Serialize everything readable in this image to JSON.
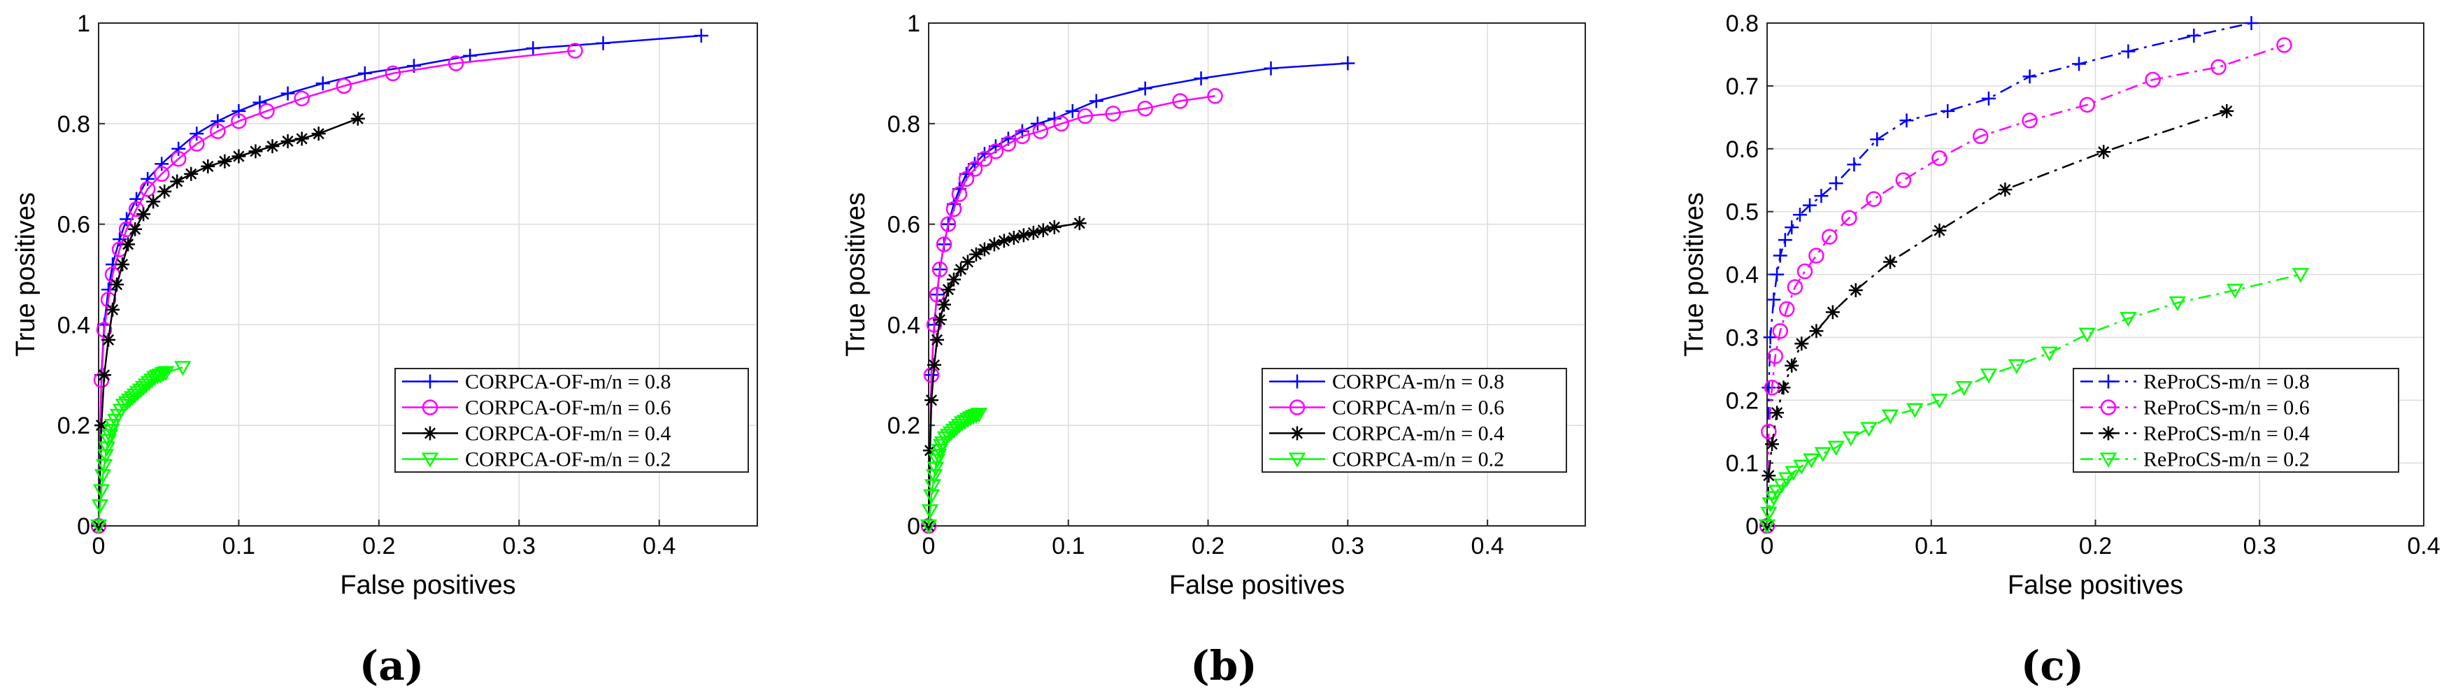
{
  "figure": {
    "captions": [
      "(a)",
      "(b)",
      "(c)"
    ]
  },
  "chart_data": [
    {
      "type": "line",
      "panel": "a",
      "caption": "(a)",
      "title": "",
      "xlabel": "False positives",
      "ylabel": "True positives",
      "xlim": [
        0,
        0.47
      ],
      "ylim": [
        0,
        1
      ],
      "xticks": [
        0,
        0.1,
        0.2,
        0.3,
        0.4
      ],
      "yticks": [
        0,
        0.2,
        0.4,
        0.6,
        0.8,
        1
      ],
      "xtick_labels": [
        "0",
        "0.1",
        "0.2",
        "0.3",
        "0.4"
      ],
      "ytick_labels": [
        "0",
        "0.2",
        "0.4",
        "0.6",
        "0.8",
        "1"
      ],
      "grid": true,
      "legend_position": "bottom-right",
      "series": [
        {
          "name": "CORPCA-OF-m/n = 0.8",
          "color": "#0000ff",
          "marker": "plus",
          "dash": "solid",
          "x": [
            0,
            0.002,
            0.004,
            0.007,
            0.01,
            0.015,
            0.02,
            0.027,
            0.035,
            0.045,
            0.057,
            0.07,
            0.085,
            0.1,
            0.115,
            0.135,
            0.16,
            0.19,
            0.225,
            0.265,
            0.31,
            0.36,
            0.43
          ],
          "y": [
            0,
            0.3,
            0.4,
            0.47,
            0.52,
            0.57,
            0.61,
            0.65,
            0.69,
            0.72,
            0.75,
            0.78,
            0.805,
            0.825,
            0.842,
            0.86,
            0.88,
            0.9,
            0.915,
            0.935,
            0.95,
            0.96,
            0.975
          ]
        },
        {
          "name": "CORPCA-OF-m/n = 0.6",
          "color": "#ff00ff",
          "marker": "circle",
          "dash": "solid",
          "x": [
            0,
            0.002,
            0.004,
            0.007,
            0.01,
            0.015,
            0.02,
            0.027,
            0.035,
            0.045,
            0.057,
            0.07,
            0.085,
            0.1,
            0.12,
            0.145,
            0.175,
            0.21,
            0.255,
            0.34
          ],
          "y": [
            0,
            0.29,
            0.39,
            0.45,
            0.5,
            0.55,
            0.59,
            0.63,
            0.67,
            0.7,
            0.73,
            0.76,
            0.785,
            0.805,
            0.825,
            0.85,
            0.875,
            0.9,
            0.92,
            0.945
          ]
        },
        {
          "name": "CORPCA-OF-m/n = 0.4",
          "color": "#000000",
          "marker": "star",
          "dash": "solid",
          "x": [
            0,
            0.002,
            0.004,
            0.007,
            0.01,
            0.013,
            0.017,
            0.021,
            0.026,
            0.032,
            0.039,
            0.047,
            0.056,
            0.066,
            0.078,
            0.09,
            0.1,
            0.112,
            0.124,
            0.135,
            0.145,
            0.157,
            0.185
          ],
          "y": [
            0,
            0.2,
            0.3,
            0.37,
            0.43,
            0.48,
            0.52,
            0.56,
            0.59,
            0.62,
            0.645,
            0.665,
            0.685,
            0.7,
            0.715,
            0.725,
            0.735,
            0.745,
            0.755,
            0.765,
            0.77,
            0.78,
            0.81
          ]
        },
        {
          "name": "CORPCA-OF-m/n = 0.2",
          "color": "#00ff00",
          "marker": "triangle-down",
          "dash": "solid",
          "x": [
            0,
            0.001,
            0.002,
            0.003,
            0.004,
            0.005,
            0.006,
            0.007,
            0.008,
            0.009,
            0.01,
            0.012,
            0.014,
            0.016,
            0.018,
            0.02,
            0.022,
            0.024,
            0.026,
            0.028,
            0.03,
            0.032,
            0.034,
            0.036,
            0.038,
            0.04,
            0.042,
            0.044,
            0.046,
            0.048,
            0.06
          ],
          "y": [
            0,
            0.04,
            0.07,
            0.1,
            0.12,
            0.14,
            0.155,
            0.17,
            0.18,
            0.19,
            0.2,
            0.21,
            0.22,
            0.23,
            0.24,
            0.245,
            0.25,
            0.255,
            0.26,
            0.265,
            0.27,
            0.275,
            0.28,
            0.285,
            0.29,
            0.295,
            0.298,
            0.3,
            0.303,
            0.305,
            0.315
          ]
        }
      ]
    },
    {
      "type": "line",
      "panel": "b",
      "caption": "(b)",
      "title": "",
      "xlabel": "False positives",
      "ylabel": "True positives",
      "xlim": [
        0,
        0.47
      ],
      "ylim": [
        0,
        1
      ],
      "xticks": [
        0,
        0.1,
        0.2,
        0.3,
        0.4
      ],
      "yticks": [
        0,
        0.2,
        0.4,
        0.6,
        0.8,
        1
      ],
      "xtick_labels": [
        "0",
        "0.1",
        "0.2",
        "0.3",
        "0.4"
      ],
      "ytick_labels": [
        "0",
        "0.2",
        "0.4",
        "0.6",
        "0.8",
        "1"
      ],
      "grid": true,
      "legend_position": "bottom-right",
      "series": [
        {
          "name": "CORPCA-m/n = 0.8",
          "color": "#0000ff",
          "marker": "plus",
          "dash": "solid",
          "x": [
            0,
            0.002,
            0.004,
            0.006,
            0.008,
            0.011,
            0.014,
            0.018,
            0.022,
            0.027,
            0.033,
            0.04,
            0.048,
            0.057,
            0.067,
            0.078,
            0.09,
            0.103,
            0.12,
            0.155,
            0.195,
            0.245,
            0.3
          ],
          "y": [
            0,
            0.3,
            0.4,
            0.46,
            0.51,
            0.56,
            0.6,
            0.64,
            0.67,
            0.7,
            0.72,
            0.74,
            0.755,
            0.77,
            0.785,
            0.8,
            0.81,
            0.825,
            0.845,
            0.87,
            0.89,
            0.91,
            0.92
          ]
        },
        {
          "name": "CORPCA-m/n = 0.6",
          "color": "#ff00ff",
          "marker": "circle",
          "dash": "solid",
          "x": [
            0,
            0.002,
            0.004,
            0.006,
            0.008,
            0.011,
            0.014,
            0.018,
            0.022,
            0.027,
            0.033,
            0.04,
            0.048,
            0.057,
            0.067,
            0.08,
            0.095,
            0.112,
            0.132,
            0.155,
            0.18,
            0.205
          ],
          "y": [
            0,
            0.3,
            0.4,
            0.46,
            0.51,
            0.56,
            0.6,
            0.63,
            0.66,
            0.69,
            0.71,
            0.73,
            0.745,
            0.76,
            0.775,
            0.785,
            0.8,
            0.815,
            0.82,
            0.83,
            0.845,
            0.855
          ]
        },
        {
          "name": "CORPCA-m/n = 0.4",
          "color": "#000000",
          "marker": "star",
          "dash": "solid",
          "x": [
            0,
            0.001,
            0.002,
            0.004,
            0.006,
            0.008,
            0.011,
            0.014,
            0.018,
            0.023,
            0.028,
            0.034,
            0.04,
            0.047,
            0.054,
            0.061,
            0.068,
            0.075,
            0.082,
            0.09,
            0.108
          ],
          "y": [
            0,
            0.15,
            0.25,
            0.32,
            0.37,
            0.41,
            0.44,
            0.47,
            0.49,
            0.51,
            0.525,
            0.54,
            0.55,
            0.56,
            0.567,
            0.573,
            0.578,
            0.583,
            0.588,
            0.594,
            0.602
          ]
        },
        {
          "name": "CORPCA-m/n = 0.2",
          "color": "#00ff00",
          "marker": "triangle-down",
          "dash": "solid",
          "x": [
            0,
            0.001,
            0.002,
            0.003,
            0.004,
            0.005,
            0.006,
            0.007,
            0.008,
            0.009,
            0.01,
            0.012,
            0.014,
            0.016,
            0.018,
            0.02,
            0.022,
            0.024,
            0.026,
            0.028,
            0.03,
            0.032,
            0.034,
            0.036
          ],
          "y": [
            0,
            0.03,
            0.06,
            0.08,
            0.1,
            0.115,
            0.13,
            0.14,
            0.15,
            0.16,
            0.165,
            0.175,
            0.18,
            0.185,
            0.19,
            0.195,
            0.2,
            0.205,
            0.208,
            0.212,
            0.215,
            0.218,
            0.22,
            0.222
          ]
        }
      ]
    },
    {
      "type": "line",
      "panel": "c",
      "caption": "(c)",
      "title": "",
      "xlabel": "False positives",
      "ylabel": "True positives",
      "xlim": [
        0,
        0.4
      ],
      "ylim": [
        0,
        0.8
      ],
      "xticks": [
        0,
        0.1,
        0.2,
        0.3,
        0.4
      ],
      "yticks": [
        0,
        0.1,
        0.2,
        0.3,
        0.4,
        0.5,
        0.6,
        0.7,
        0.8
      ],
      "xtick_labels": [
        "0",
        "0.1",
        "0.2",
        "0.3",
        "0.4"
      ],
      "ytick_labels": [
        "0",
        "0.1",
        "0.2",
        "0.3",
        "0.4",
        "0.5",
        "0.6",
        "0.7",
        "0.8"
      ],
      "grid": true,
      "legend_position": "bottom-right",
      "series": [
        {
          "name": "ReProCS-m/n = 0.8",
          "color": "#0000ff",
          "marker": "plus",
          "dash": "dashdot",
          "x": [
            0,
            0.001,
            0.002,
            0.004,
            0.006,
            0.008,
            0.011,
            0.015,
            0.02,
            0.026,
            0.033,
            0.042,
            0.053,
            0.067,
            0.085,
            0.11,
            0.135,
            0.16,
            0.19,
            0.22,
            0.26,
            0.295
          ],
          "y": [
            0,
            0.22,
            0.3,
            0.36,
            0.4,
            0.43,
            0.455,
            0.475,
            0.495,
            0.51,
            0.525,
            0.545,
            0.575,
            0.615,
            0.645,
            0.66,
            0.68,
            0.715,
            0.735,
            0.755,
            0.78,
            0.8
          ]
        },
        {
          "name": "ReProCS-m/n = 0.6",
          "color": "#ff00ff",
          "marker": "circle",
          "dash": "dashdot",
          "x": [
            0,
            0.001,
            0.003,
            0.005,
            0.008,
            0.012,
            0.017,
            0.023,
            0.03,
            0.038,
            0.05,
            0.065,
            0.083,
            0.105,
            0.13,
            0.16,
            0.195,
            0.235,
            0.275,
            0.315
          ],
          "y": [
            0,
            0.15,
            0.22,
            0.27,
            0.31,
            0.345,
            0.38,
            0.405,
            0.43,
            0.46,
            0.49,
            0.52,
            0.55,
            0.585,
            0.62,
            0.645,
            0.67,
            0.71,
            0.73,
            0.765
          ]
        },
        {
          "name": "ReProCS-m/n = 0.4",
          "color": "#000000",
          "marker": "star",
          "dash": "dashdot",
          "x": [
            0,
            0.001,
            0.003,
            0.006,
            0.01,
            0.015,
            0.021,
            0.03,
            0.04,
            0.054,
            0.075,
            0.105,
            0.145,
            0.205,
            0.28
          ],
          "y": [
            0,
            0.08,
            0.13,
            0.18,
            0.22,
            0.255,
            0.29,
            0.31,
            0.34,
            0.375,
            0.42,
            0.47,
            0.535,
            0.595,
            0.66
          ]
        },
        {
          "name": "ReProCS-m/n = 0.2",
          "color": "#00ff00",
          "marker": "triangle-down",
          "dash": "dashdot",
          "x": [
            0,
            0.001,
            0.002,
            0.004,
            0.006,
            0.009,
            0.012,
            0.016,
            0.021,
            0.027,
            0.034,
            0.042,
            0.051,
            0.062,
            0.075,
            0.09,
            0.105,
            0.12,
            0.135,
            0.152,
            0.172,
            0.195,
            0.22,
            0.25,
            0.285,
            0.325
          ],
          "y": [
            0,
            0.02,
            0.035,
            0.045,
            0.055,
            0.065,
            0.075,
            0.085,
            0.095,
            0.105,
            0.115,
            0.125,
            0.14,
            0.155,
            0.175,
            0.185,
            0.2,
            0.22,
            0.24,
            0.255,
            0.275,
            0.305,
            0.33,
            0.355,
            0.375,
            0.4
          ]
        }
      ]
    }
  ]
}
